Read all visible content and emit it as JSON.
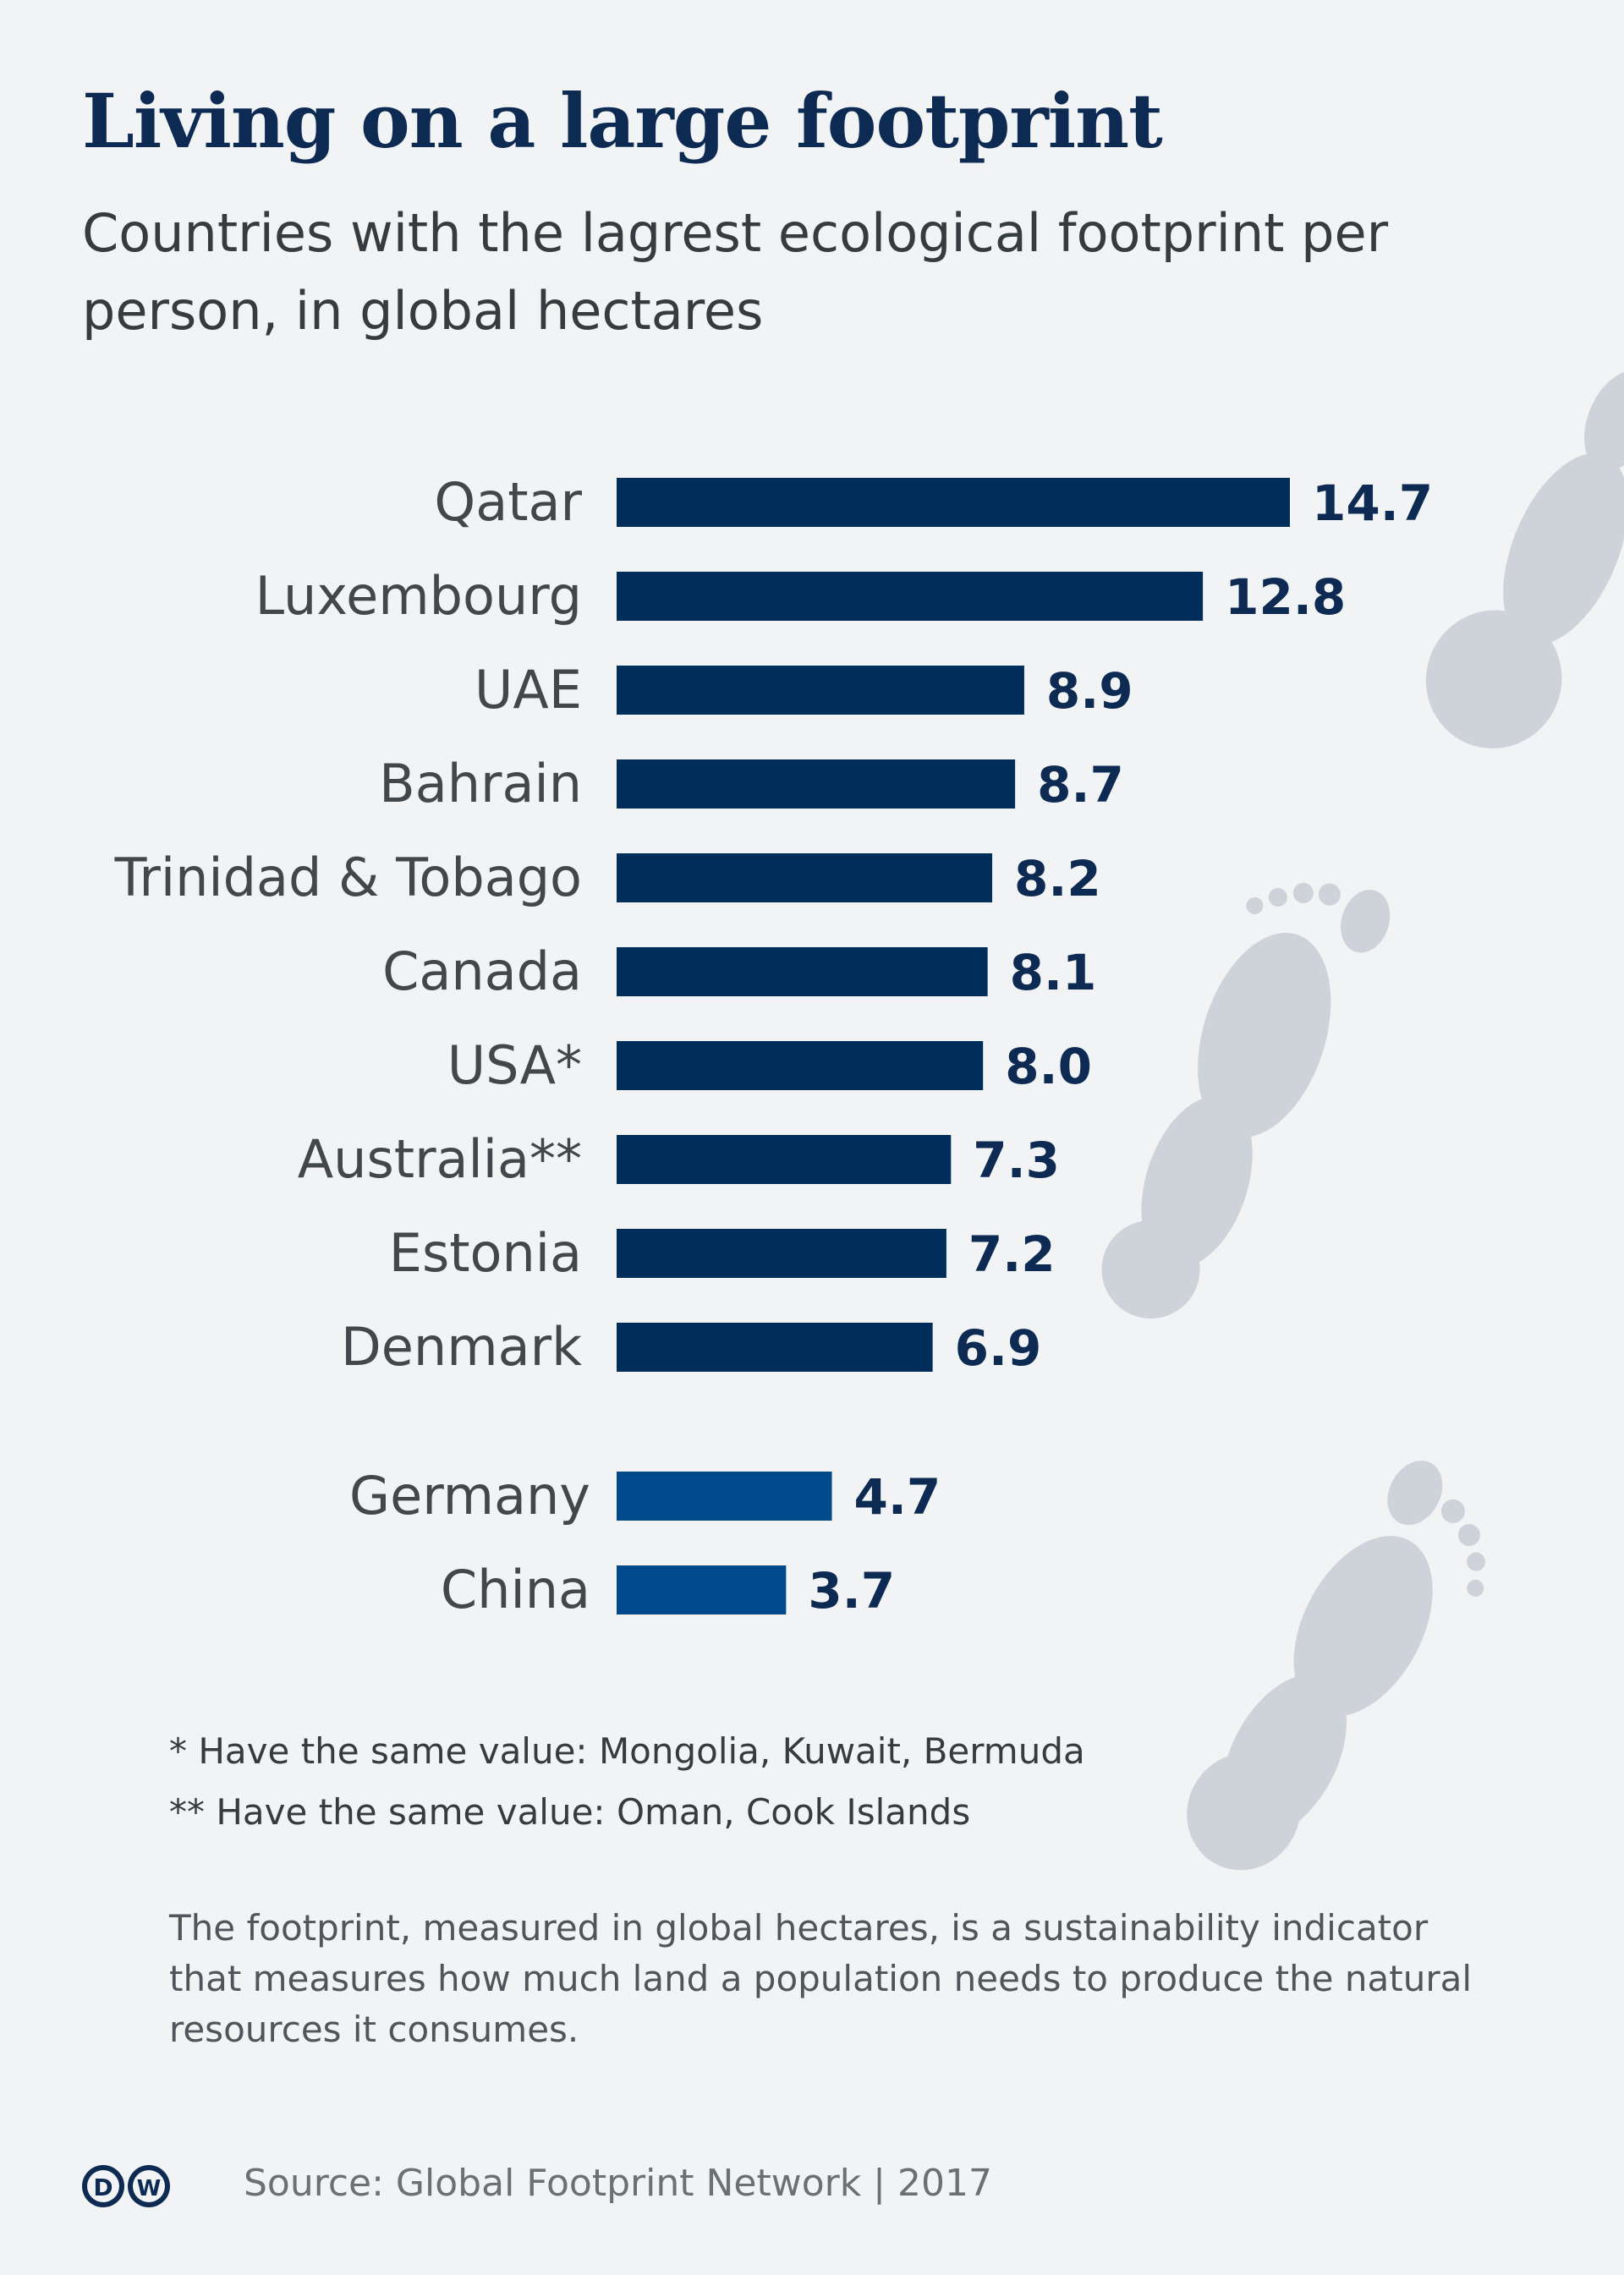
{
  "header": {
    "title": "Living on a large footprint",
    "subtitle": "Countries with the lagrest ecological footprint per person, in global hectares"
  },
  "chart_data": {
    "type": "bar",
    "orientation": "horizontal",
    "categories": [
      "Qatar",
      "Luxembourg",
      "UAE",
      "Bahrain",
      "Trinidad & Tobago",
      "Canada",
      "USA*",
      "Australia**",
      "Estonia",
      "Denmark",
      "Germany",
      "China"
    ],
    "values": [
      14.7,
      12.8,
      8.9,
      8.7,
      8.2,
      8.1,
      8.0,
      7.3,
      7.2,
      6.9,
      4.7,
      3.7
    ],
    "value_labels": [
      "14.7",
      "12.8",
      "8.9",
      "8.7",
      "8.2",
      "8.1",
      "8.0",
      "7.3",
      "7.2",
      "6.9",
      "4.7",
      "3.7"
    ],
    "groups": [
      "top10",
      "top10",
      "top10",
      "top10",
      "top10",
      "top10",
      "top10",
      "top10",
      "top10",
      "top10",
      "comparison",
      "comparison"
    ],
    "colors": {
      "top10": "#002d5a",
      "comparison": "#00498a"
    },
    "title": "Living on a large footprint",
    "subtitle": "Countries with the lagrest ecological footprint per person, in global hectares",
    "xlabel": "",
    "ylabel": "",
    "xlim": [
      0,
      14.7
    ],
    "grid": false,
    "legend": "none"
  },
  "notes": [
    "* Have the same value: Mongolia, Kuwait, Bermuda",
    "** Have the same value: Oman, Cook Islands"
  ],
  "description": "The footprint, measured in global hectares, is a sustainability indicator that measures how much land a population needs to produce the natural resources it consumes.",
  "footer": {
    "logo_icon": "dw-logo-icon",
    "source": "Source: Global Footprint Network | 2017"
  },
  "decoration": {
    "footprint_color": "#cdd3d8"
  }
}
